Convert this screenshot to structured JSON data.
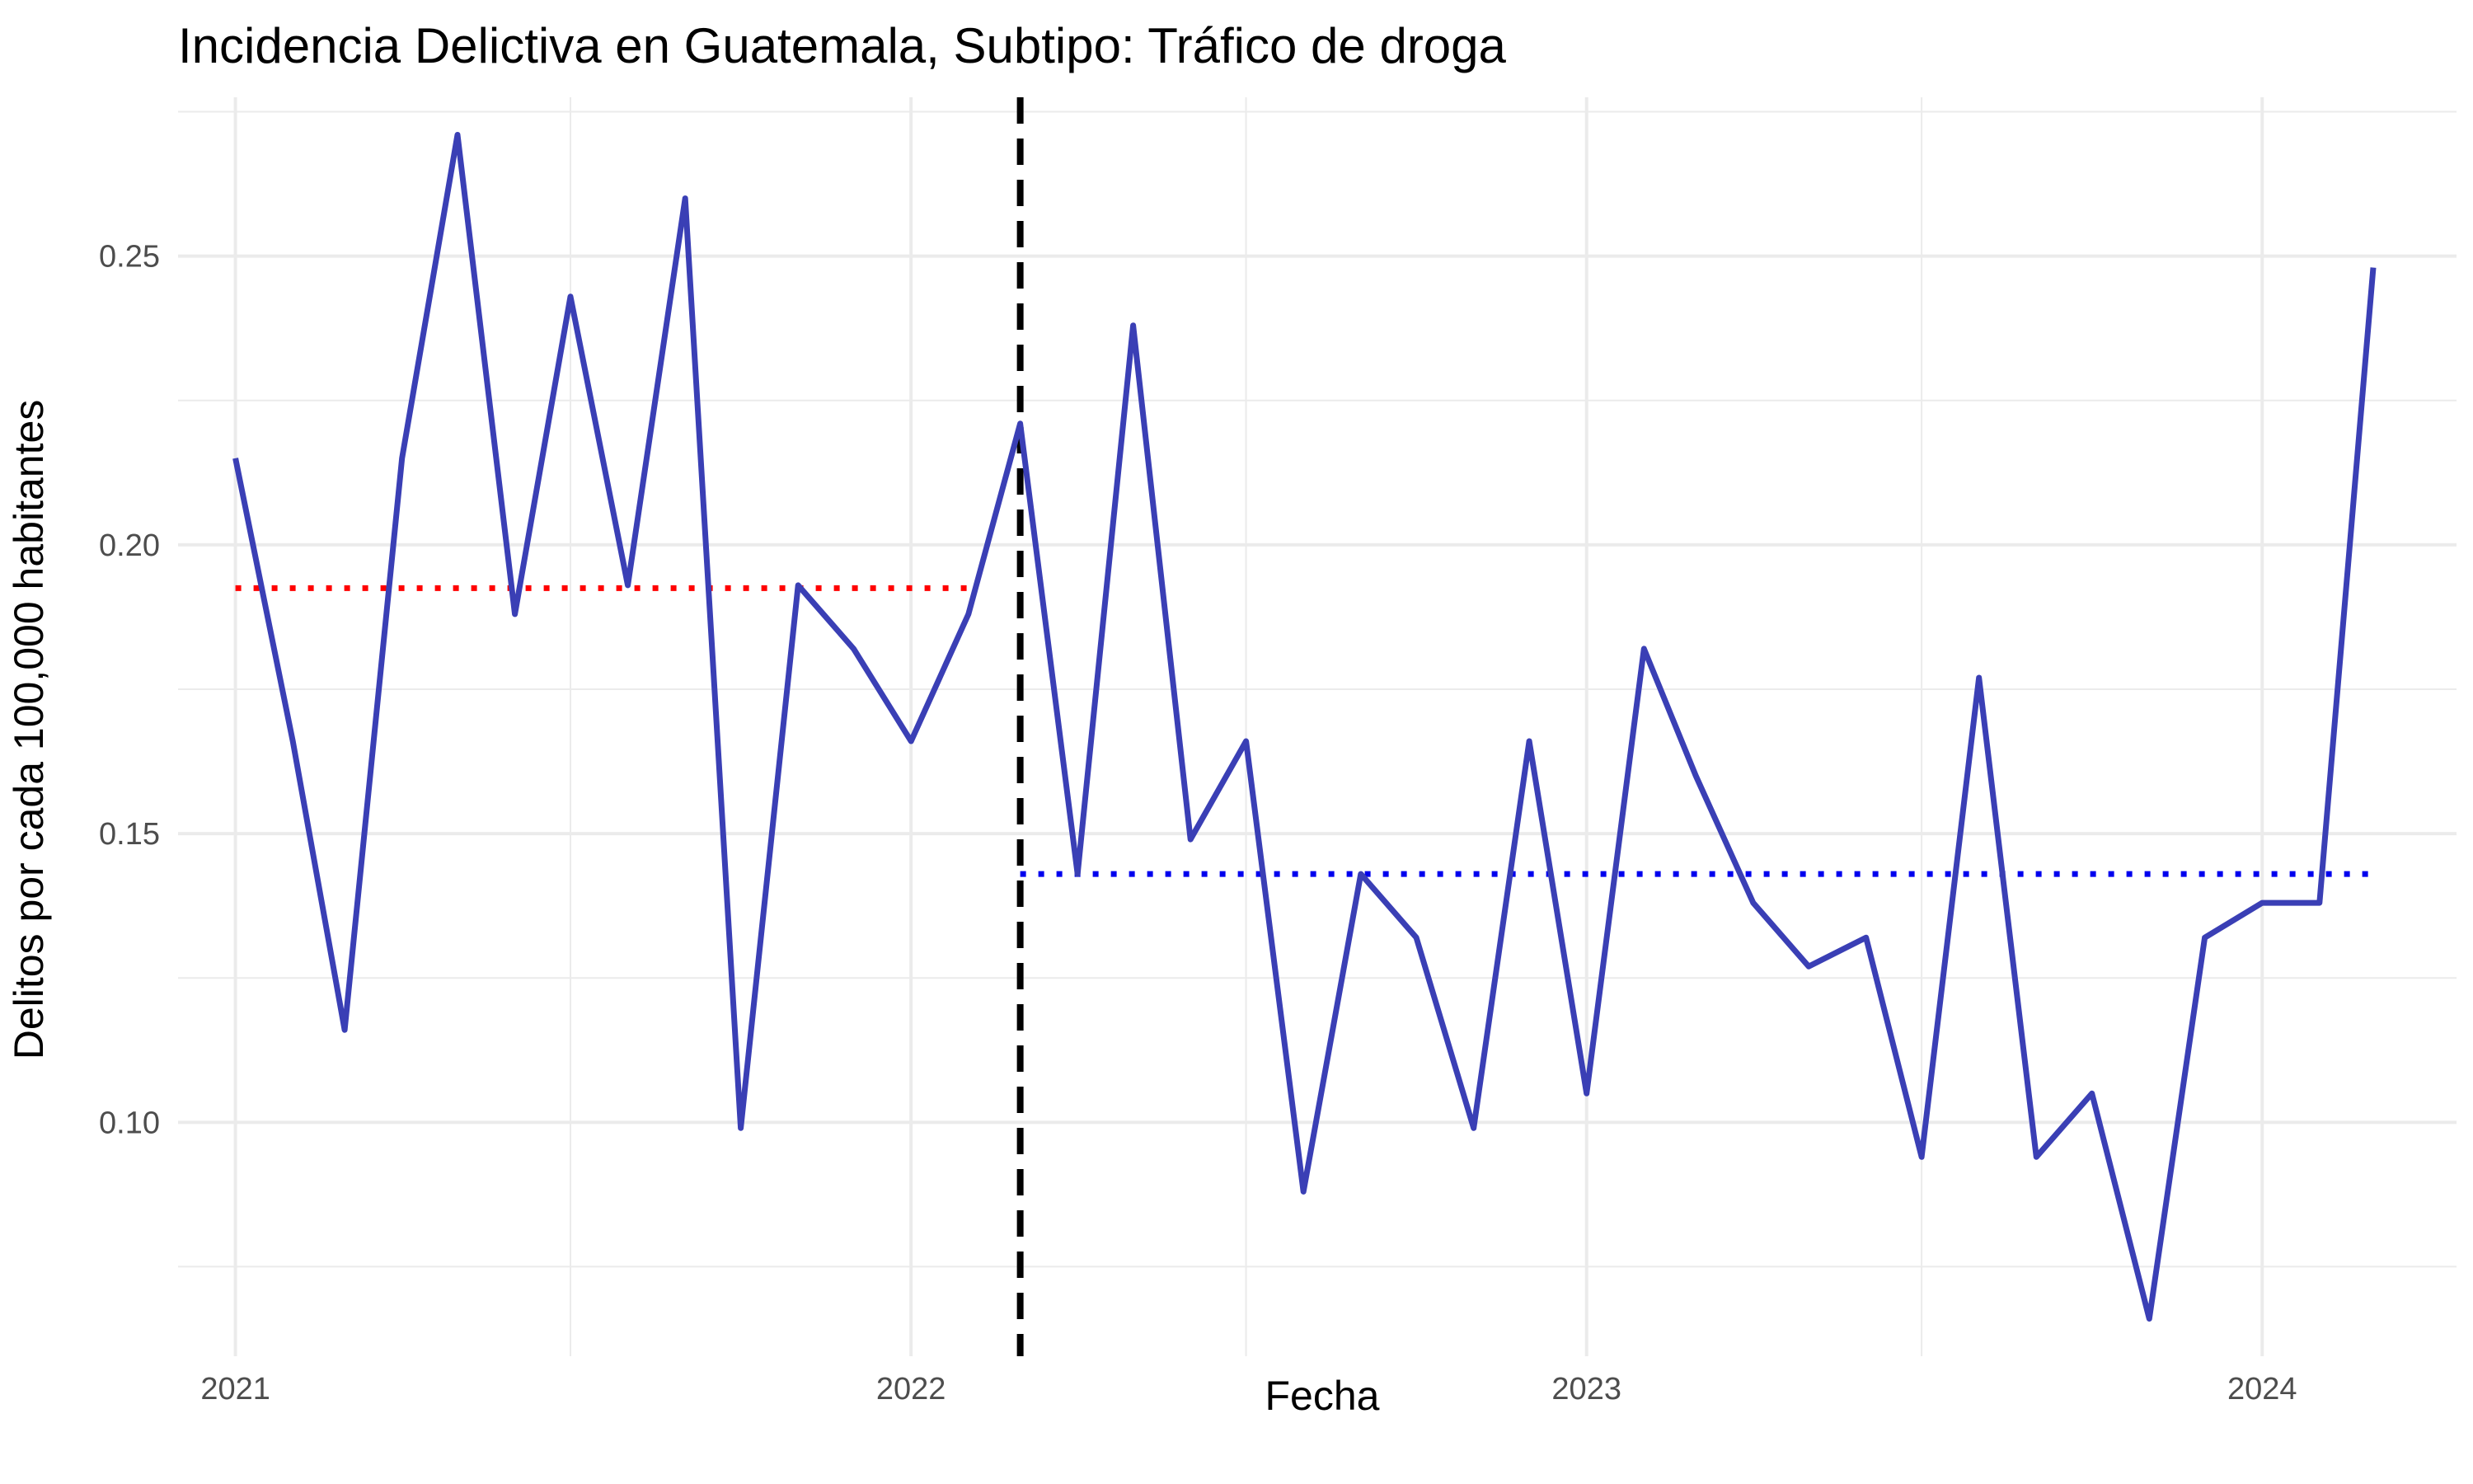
{
  "chart_data": {
    "type": "line",
    "title": "Incidencia Delictiva en Guatemala, Subtipo: Tráfico de droga",
    "xlabel": "Fecha",
    "ylabel": "Delitos por cada 100,000 habitantes",
    "x_ticks": [
      "2021",
      "2022",
      "2023",
      "2024"
    ],
    "y_ticks": [
      "0.10",
      "0.15",
      "0.20",
      "0.25"
    ],
    "y_tick_values": [
      0.1,
      0.15,
      0.2,
      0.25
    ],
    "xlim": [
      "2020-12-01",
      "2024-04-15"
    ],
    "ylim": [
      0.0595,
      0.2775
    ],
    "grid": true,
    "series": [
      {
        "color": "#3a3fb5",
        "x": [
          "2021-01",
          "2021-02",
          "2021-03",
          "2021-04",
          "2021-05",
          "2021-06",
          "2021-07",
          "2021-08",
          "2021-09",
          "2021-10",
          "2021-11",
          "2021-12",
          "2022-01",
          "2022-02",
          "2022-03",
          "2022-04",
          "2022-05",
          "2022-06",
          "2022-07",
          "2022-08",
          "2022-09",
          "2022-10",
          "2022-11",
          "2022-12",
          "2023-01",
          "2023-02",
          "2023-03",
          "2023-04",
          "2023-05",
          "2023-06",
          "2023-07",
          "2023-08",
          "2023-09",
          "2023-10",
          "2023-11",
          "2023-12",
          "2024-01",
          "2024-02",
          "2024-03",
          "2024-04"
        ],
        "values": [
          0.215,
          0.166,
          0.116,
          0.215,
          0.271,
          0.188,
          0.243,
          0.193,
          0.26,
          0.099,
          0.193,
          0.182,
          0.166,
          0.188,
          0.221,
          0.143,
          0.238,
          0.149,
          0.166,
          0.088,
          0.143,
          0.132,
          0.099,
          0.166,
          0.105,
          0.182,
          0.16,
          0.138,
          0.127,
          0.132,
          0.094,
          0.177,
          0.094,
          0.105,
          0.066,
          0.132,
          0.138,
          0.138,
          0.248,
          null
        ]
      }
    ],
    "reference_lines": [
      {
        "kind": "vertical",
        "style": "dashed",
        "color": "#000000",
        "x": "2022-03"
      },
      {
        "kind": "horizontal",
        "style": "dotted",
        "color": "#ff0000",
        "y": 0.1925,
        "x_from": "2021-01",
        "x_to": "2022-02"
      },
      {
        "kind": "horizontal",
        "style": "dotted",
        "color": "#0000ee",
        "y": 0.143,
        "x_from": "2022-03",
        "x_to": "2024-03"
      }
    ]
  }
}
